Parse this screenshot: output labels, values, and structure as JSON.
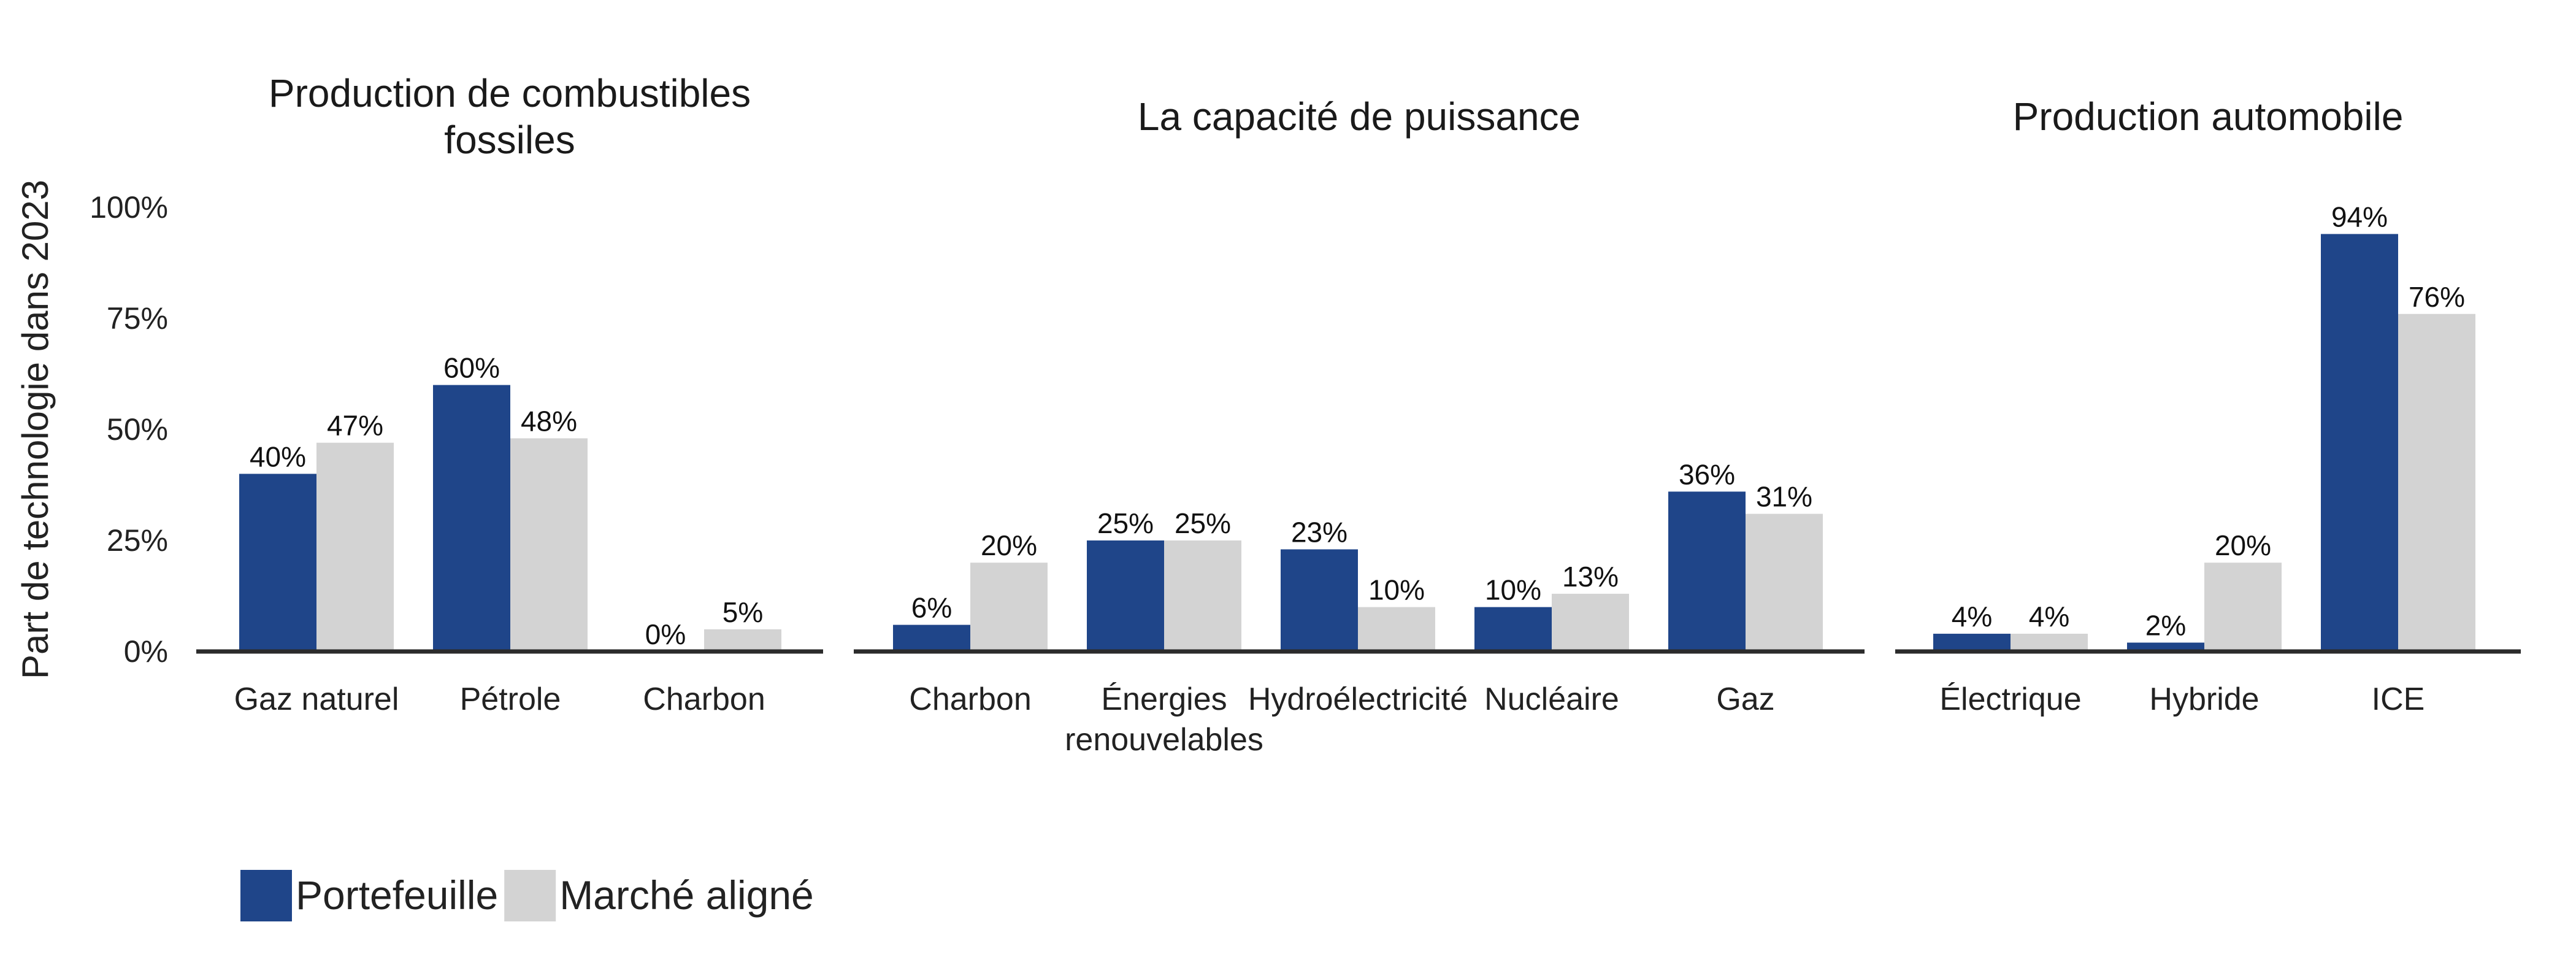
{
  "chart_data": {
    "type": "bar",
    "ylabel": "Part de technologie dans 2023",
    "ylim": [
      0,
      100
    ],
    "yticks": [
      "0%",
      "25%",
      "50%",
      "75%",
      "100%"
    ],
    "value_format": "percent",
    "colors": {
      "Portefeuille": "#1f4589",
      "Marché aligné": "#d3d3d3",
      "axis": "#2b2b2b"
    },
    "legend": {
      "position": "bottom-left",
      "entries": [
        "Portefeuille",
        "Marché aligné"
      ]
    },
    "panels": [
      {
        "title": "Production de combustibles fossiles",
        "title_lines": [
          "Production de combustibles",
          "fossiles"
        ],
        "categories": [
          [
            "Gaz naturel"
          ],
          [
            "Pétrole"
          ],
          [
            "Charbon"
          ]
        ],
        "series": [
          {
            "name": "Portefeuille",
            "values": [
              40,
              60,
              0
            ]
          },
          {
            "name": "Marché aligné",
            "values": [
              47,
              48,
              5
            ]
          }
        ]
      },
      {
        "title": "La capacité de puissance",
        "title_lines": [
          "La capacité de puissance"
        ],
        "categories": [
          [
            "Charbon"
          ],
          [
            "Énergies",
            "renouvelables"
          ],
          [
            "Hydroélectricité"
          ],
          [
            "Nucléaire"
          ],
          [
            "Gaz"
          ]
        ],
        "series": [
          {
            "name": "Portefeuille",
            "values": [
              6,
              25,
              23,
              10,
              36
            ]
          },
          {
            "name": "Marché aligné",
            "values": [
              20,
              25,
              10,
              13,
              31
            ]
          }
        ]
      },
      {
        "title": "Production automobile",
        "title_lines": [
          "Production automobile"
        ],
        "categories": [
          [
            "Électrique"
          ],
          [
            "Hybride"
          ],
          [
            "ICE"
          ]
        ],
        "series": [
          {
            "name": "Portefeuille",
            "values": [
              4,
              2,
              94
            ]
          },
          {
            "name": "Marché aligné",
            "values": [
              4,
              20,
              76
            ]
          }
        ]
      }
    ]
  }
}
